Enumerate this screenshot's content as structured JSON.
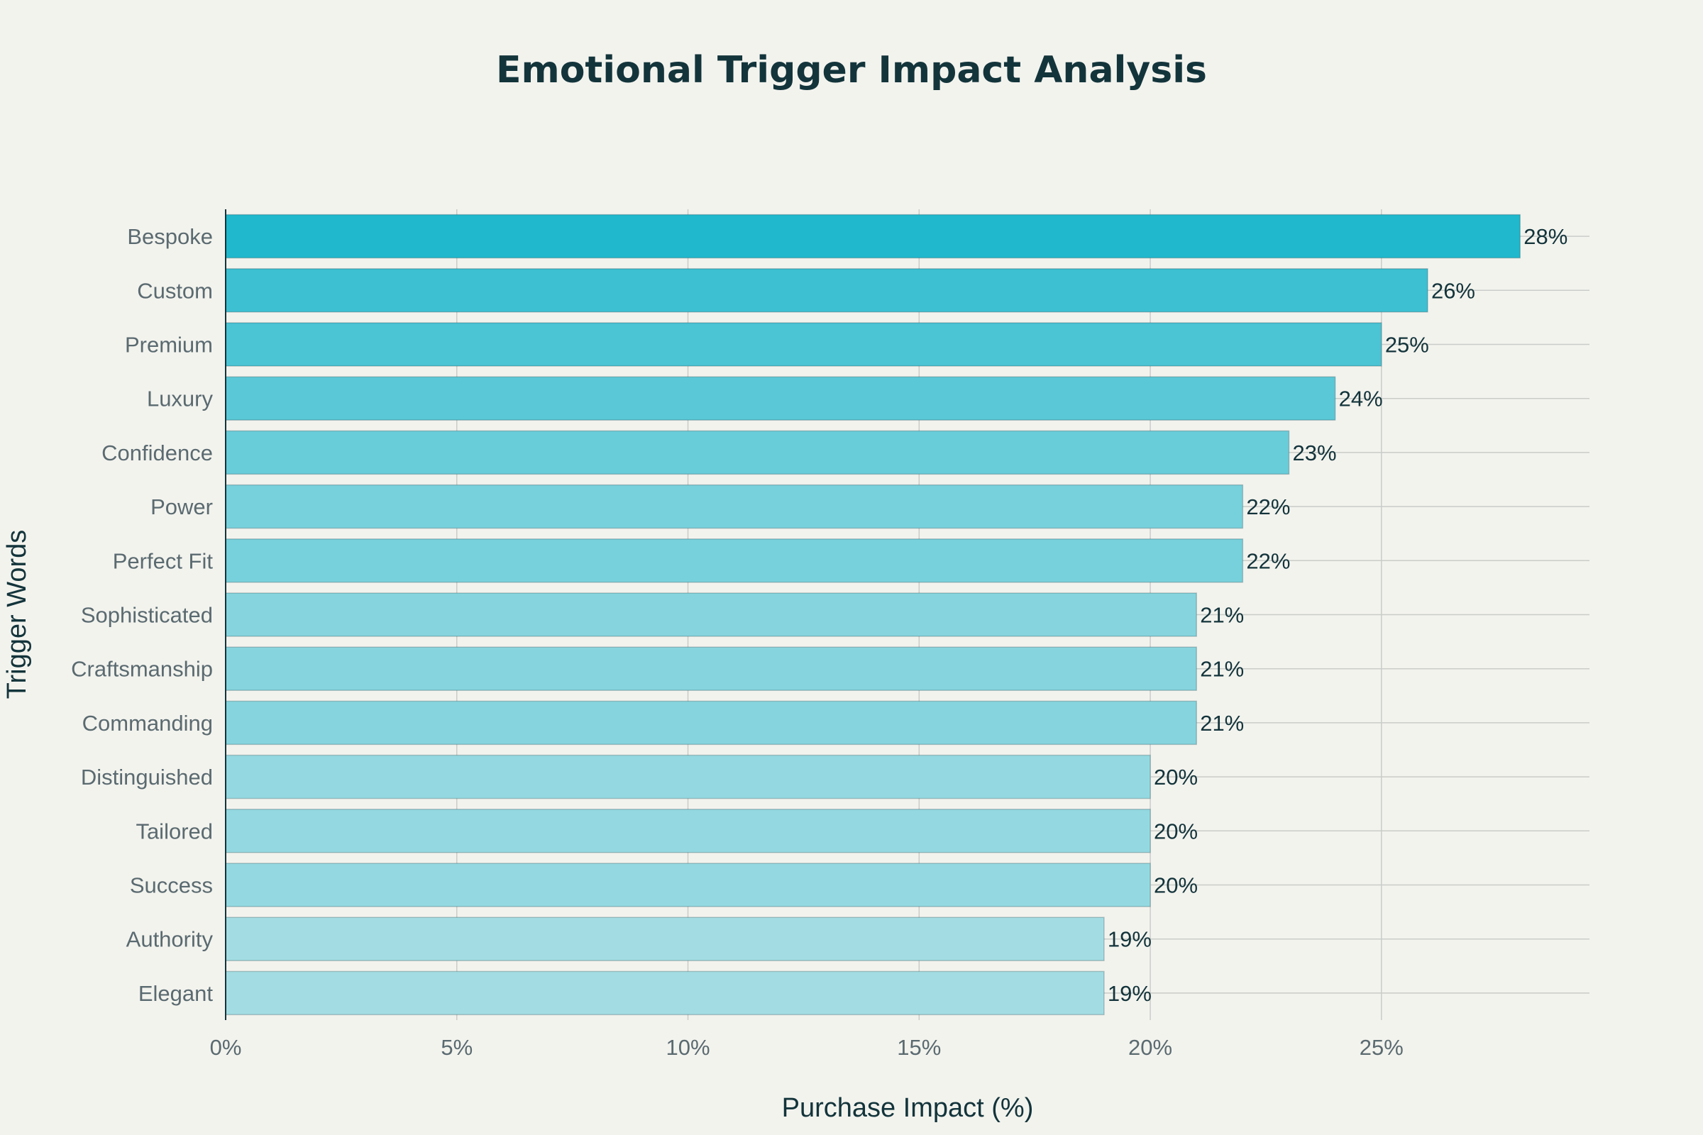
{
  "chart_data": {
    "type": "bar",
    "orientation": "horizontal",
    "title": "Emotional Trigger Impact Analysis",
    "xlabel": "Purchase Impact (%)",
    "ylabel": "Trigger Words",
    "categories": [
      "Bespoke",
      "Custom",
      "Premium",
      "Luxury",
      "Confidence",
      "Power",
      "Perfect Fit",
      "Sophisticated",
      "Craftsmanship",
      "Commanding",
      "Distinguished",
      "Tailored",
      "Success",
      "Authority",
      "Elegant"
    ],
    "values": [
      28,
      26,
      25,
      24,
      23,
      22,
      22,
      21,
      21,
      21,
      20,
      20,
      20,
      19,
      19
    ],
    "data_labels": [
      "28%",
      "26%",
      "25%",
      "24%",
      "23%",
      "22%",
      "22%",
      "21%",
      "21%",
      "21%",
      "20%",
      "20%",
      "20%",
      "19%",
      "19%"
    ],
    "xticks": [
      0,
      5,
      10,
      15,
      20,
      25
    ],
    "xtick_labels": [
      "0%",
      "5%",
      "10%",
      "15%",
      "20%",
      "25%"
    ],
    "xlim": [
      0,
      29.5
    ],
    "grid": true,
    "legend": "none",
    "color_high": "#1fb8cd",
    "color_low": "#a3dde3"
  }
}
